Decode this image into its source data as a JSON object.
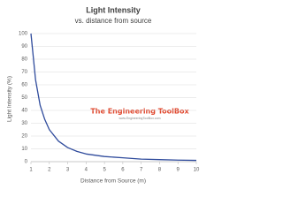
{
  "chart_data": {
    "type": "line",
    "title": "Light Intensity",
    "subtitle": "vs. distance from source",
    "x_label": "Distance from Source (m)",
    "y_label": "Light Intensity (%)",
    "annotations": [
      "The Engineering ToolBox",
      "www.EngineeringToolBox.com"
    ],
    "x": [
      1,
      1.25,
      1.5,
      1.75,
      2,
      2.5,
      3,
      3.5,
      4,
      5,
      6,
      7,
      8,
      9,
      10
    ],
    "series": [
      {
        "name": "Light Intensity",
        "color": "#2f4b9c",
        "values": [
          100,
          64,
          44,
          33,
          25,
          16,
          11,
          8,
          6,
          4,
          3,
          2,
          1.6,
          1.2,
          1
        ]
      }
    ],
    "xlim": [
      1,
      10
    ],
    "xticks": [
      1,
      2,
      3,
      4,
      5,
      6,
      7,
      8,
      9,
      10
    ],
    "ylim": [
      0,
      100
    ],
    "yticks": [
      0,
      10,
      20,
      30,
      40,
      50,
      60,
      70,
      80,
      90,
      100
    ],
    "grid": true
  }
}
